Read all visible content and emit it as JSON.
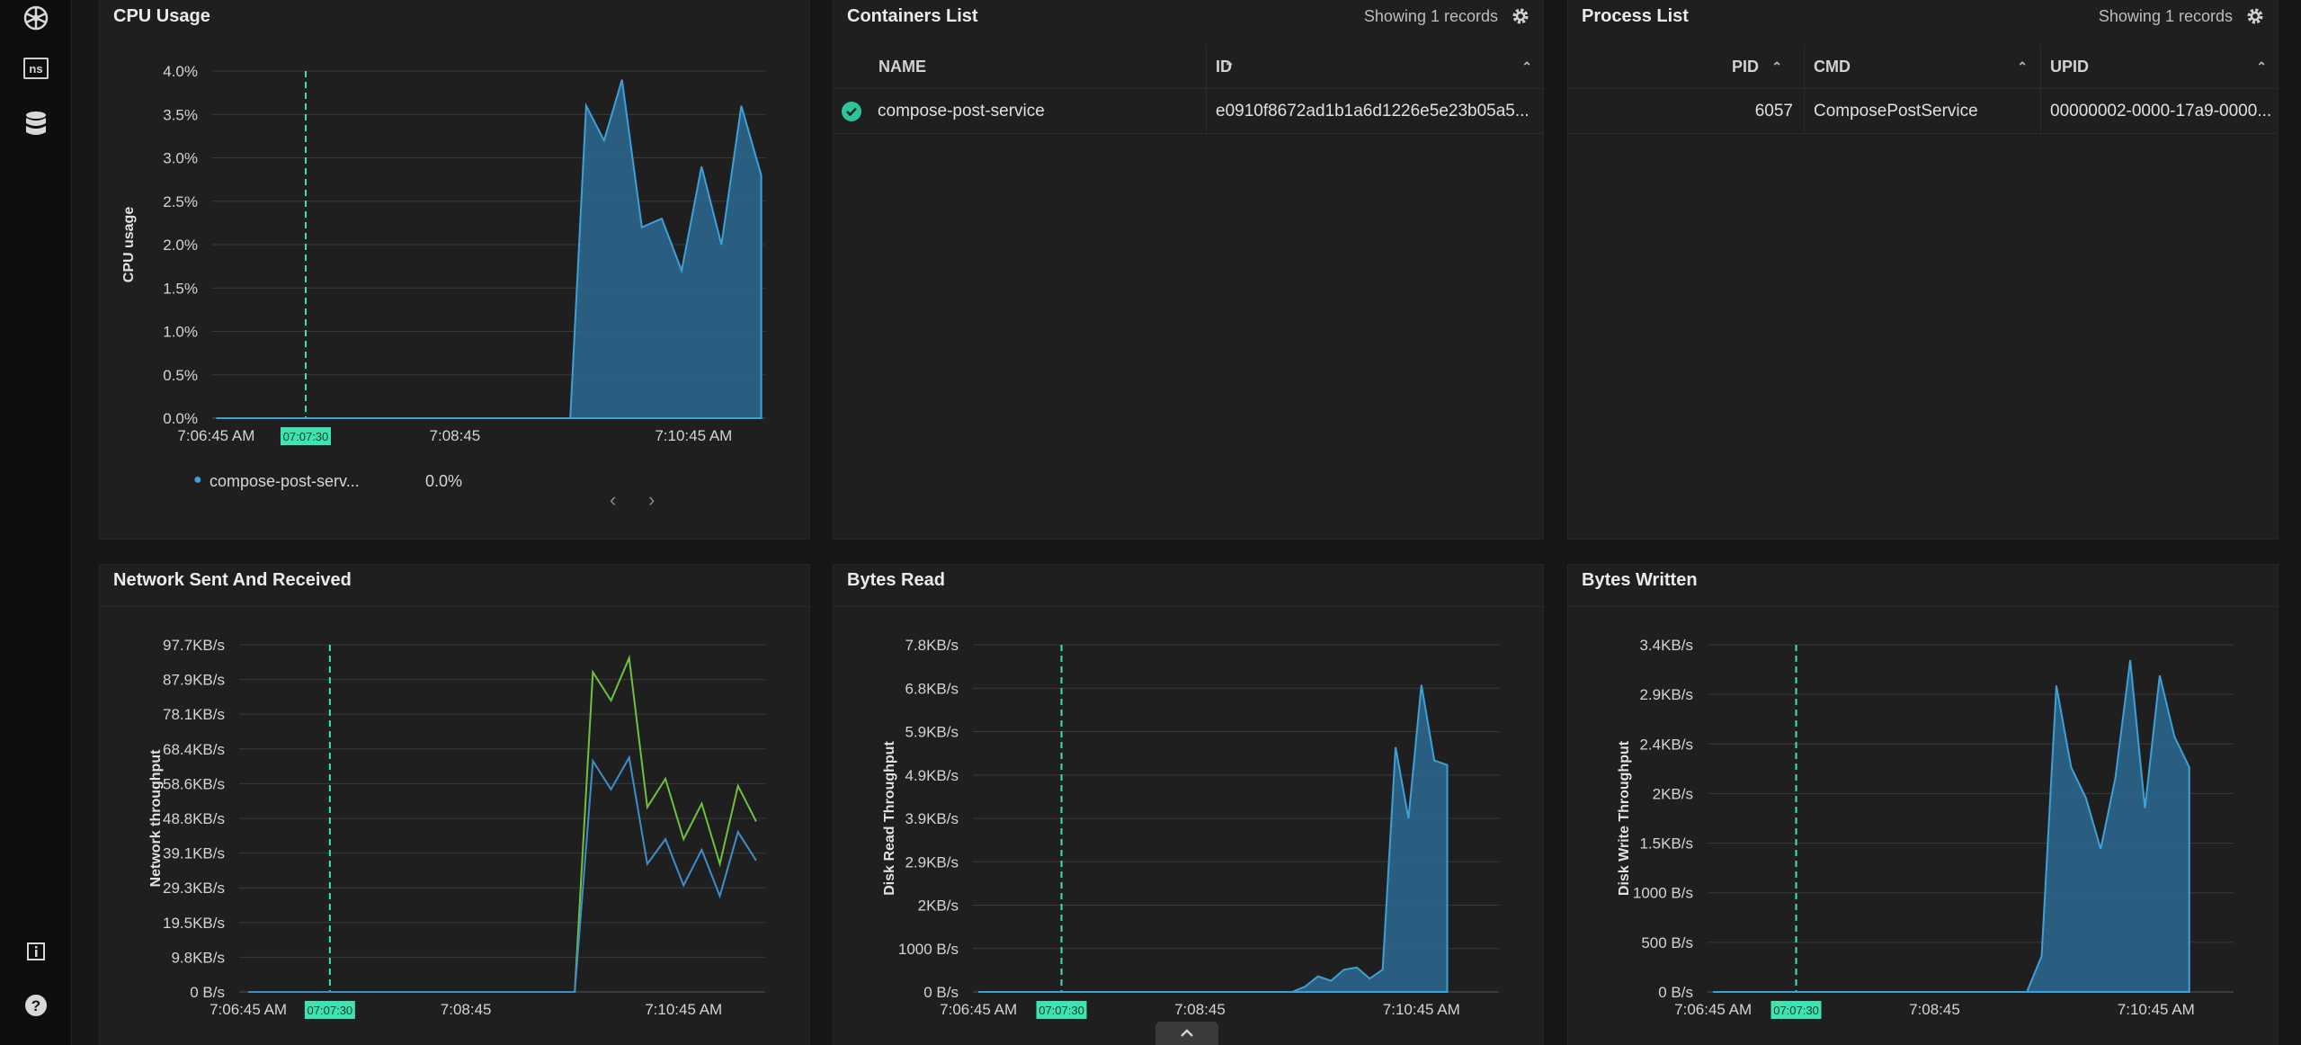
{
  "colors": {
    "accent": "#2cc49a",
    "area_stroke": "#3fa0d8",
    "area_fill": "#2b6a92",
    "green_line": "#6ec23d",
    "blue_line": "#3d8ec9",
    "grid": "#3a3a3a",
    "marker": "#3de3b0"
  },
  "sidebar": {
    "icons": [
      "kubernetes-icon",
      "namespace-icon",
      "database-icon",
      "info-icon",
      "help-icon"
    ],
    "ns_label": "ns"
  },
  "cpu": {
    "title": "CPU Usage",
    "legend_name": "compose-post-serv...",
    "legend_value": "0.0%",
    "chart_data": {
      "type": "area",
      "ylabel": "CPU usage",
      "y_ticks": [
        "0.0%",
        "0.5%",
        "1.0%",
        "1.5%",
        "2.0%",
        "2.5%",
        "3.0%",
        "3.5%",
        "4.0%"
      ],
      "ylim": [
        0,
        4
      ],
      "x_ticks": [
        {
          "label": "7:06:45 AM",
          "t": 0
        },
        {
          "label": "7:08:45",
          "t": 120
        },
        {
          "label": "7:10:45 AM",
          "t": 240
        }
      ],
      "marker": {
        "label": "07:07:30",
        "t": 45
      },
      "xlim": [
        -2,
        276
      ],
      "series": [
        {
          "name": "compose-post-service",
          "x": [
            0,
            50,
            100,
            150,
            178,
            186,
            195,
            204,
            214,
            224,
            234,
            244,
            254,
            264,
            274
          ],
          "y": [
            0,
            0,
            0,
            0,
            0,
            3.6,
            3.2,
            3.9,
            2.2,
            2.3,
            1.7,
            2.9,
            2.0,
            3.6,
            2.8
          ]
        }
      ],
      "end_value": 2.4
    }
  },
  "containers": {
    "title": "Containers List",
    "records": "Showing 1 records",
    "columns": [
      "NAME",
      "ID"
    ],
    "rows": [
      {
        "name": "compose-post-service",
        "id": "e0910f8672ad1b1a6d1226e5e23b05a5..."
      }
    ]
  },
  "processes": {
    "title": "Process List",
    "records": "Showing 1 records",
    "columns": [
      "PID",
      "CMD",
      "UPID"
    ],
    "rows": [
      {
        "pid": "6057",
        "cmd": "ComposePostService",
        "upid": "00000002-0000-17a9-0000..."
      }
    ]
  },
  "network": {
    "title": "Network Sent And Received",
    "chart_data": {
      "type": "line",
      "ylabel": "Network throughput",
      "y_ticks": [
        "0 B/s",
        "9.8KB/s",
        "19.5KB/s",
        "29.3KB/s",
        "39.1KB/s",
        "48.8KB/s",
        "58.6KB/s",
        "68.4KB/s",
        "78.1KB/s",
        "87.9KB/s",
        "97.7KB/s"
      ],
      "ylim": [
        0,
        97.7
      ],
      "x_ticks": [
        {
          "label": "7:06:45 AM",
          "t": 0
        },
        {
          "label": "7:08:45",
          "t": 120
        },
        {
          "label": "7:10:45 AM",
          "t": 240
        }
      ],
      "marker": {
        "label": "07:07:30",
        "t": 45
      },
      "xlim": [
        -5,
        285
      ],
      "series": [
        {
          "x": [
            0,
            60,
            120,
            170,
            180,
            190,
            200,
            210,
            220,
            230,
            240,
            250,
            260,
            270,
            280
          ],
          "y": [
            0,
            0,
            0,
            0,
            0,
            90,
            82,
            94,
            52,
            60,
            43,
            53,
            36,
            58,
            48
          ]
        },
        {
          "x": [
            0,
            60,
            120,
            170,
            180,
            190,
            200,
            210,
            220,
            230,
            240,
            250,
            260,
            270,
            280
          ],
          "y": [
            0,
            0,
            0,
            0,
            0,
            65,
            57,
            66,
            36,
            43,
            30,
            40,
            27,
            45,
            37
          ]
        }
      ]
    }
  },
  "bytes_read": {
    "title": "Bytes Read",
    "chart_data": {
      "type": "area",
      "ylabel": "Disk Read Throughput",
      "y_ticks": [
        "0 B/s",
        "1000 B/s",
        "2KB/s",
        "2.9KB/s",
        "3.9KB/s",
        "4.9KB/s",
        "5.9KB/s",
        "6.8KB/s",
        "7.8KB/s"
      ],
      "ylim": [
        0,
        7.8
      ],
      "x_ticks": [
        {
          "label": "7:06:45 AM",
          "t": 0
        },
        {
          "label": "7:08:45",
          "t": 120
        },
        {
          "label": "7:10:45 AM",
          "t": 240
        }
      ],
      "marker": {
        "label": "07:07:30",
        "t": 45
      },
      "xlim": [
        -3,
        282
      ],
      "series": [
        {
          "x": [
            0,
            60,
            120,
            170,
            177,
            184,
            191,
            198,
            205,
            212,
            219,
            226,
            233,
            240,
            247,
            254,
            261,
            268,
            275,
            281
          ],
          "y": [
            0,
            0,
            0,
            0,
            0.12,
            0.35,
            0.25,
            0.5,
            0.55,
            0.3,
            0.5,
            5.5,
            3.9,
            6.9,
            5.2,
            5.1,
            0,
            0,
            0,
            0
          ],
          "end_index": 16
        }
      ]
    }
  },
  "bytes_written": {
    "title": "Bytes Written",
    "chart_data": {
      "type": "area",
      "ylabel": "Disk Write Throughput",
      "y_ticks": [
        "0 B/s",
        "500 B/s",
        "1000 B/s",
        "1.5KB/s",
        "2KB/s",
        "2.4KB/s",
        "2.9KB/s",
        "3.4KB/s"
      ],
      "ylim": [
        0,
        3.4
      ],
      "x_ticks": [
        {
          "label": "7:06:45 AM",
          "t": 0
        },
        {
          "label": "7:08:45",
          "t": 120
        },
        {
          "label": "7:10:45 AM",
          "t": 240
        }
      ],
      "marker": {
        "label": "07:07:30",
        "t": 45
      },
      "xlim": [
        -3,
        282
      ],
      "series": [
        {
          "x": [
            0,
            60,
            120,
            170,
            178,
            186,
            194,
            202,
            210,
            218,
            226,
            234,
            242,
            250,
            258,
            266
          ],
          "y": [
            0,
            0,
            0,
            0,
            0.35,
            3.0,
            2.2,
            1.9,
            1.4,
            2.1,
            3.25,
            1.8,
            3.1,
            2.5,
            2.2,
            0
          ]
        }
      ]
    }
  }
}
